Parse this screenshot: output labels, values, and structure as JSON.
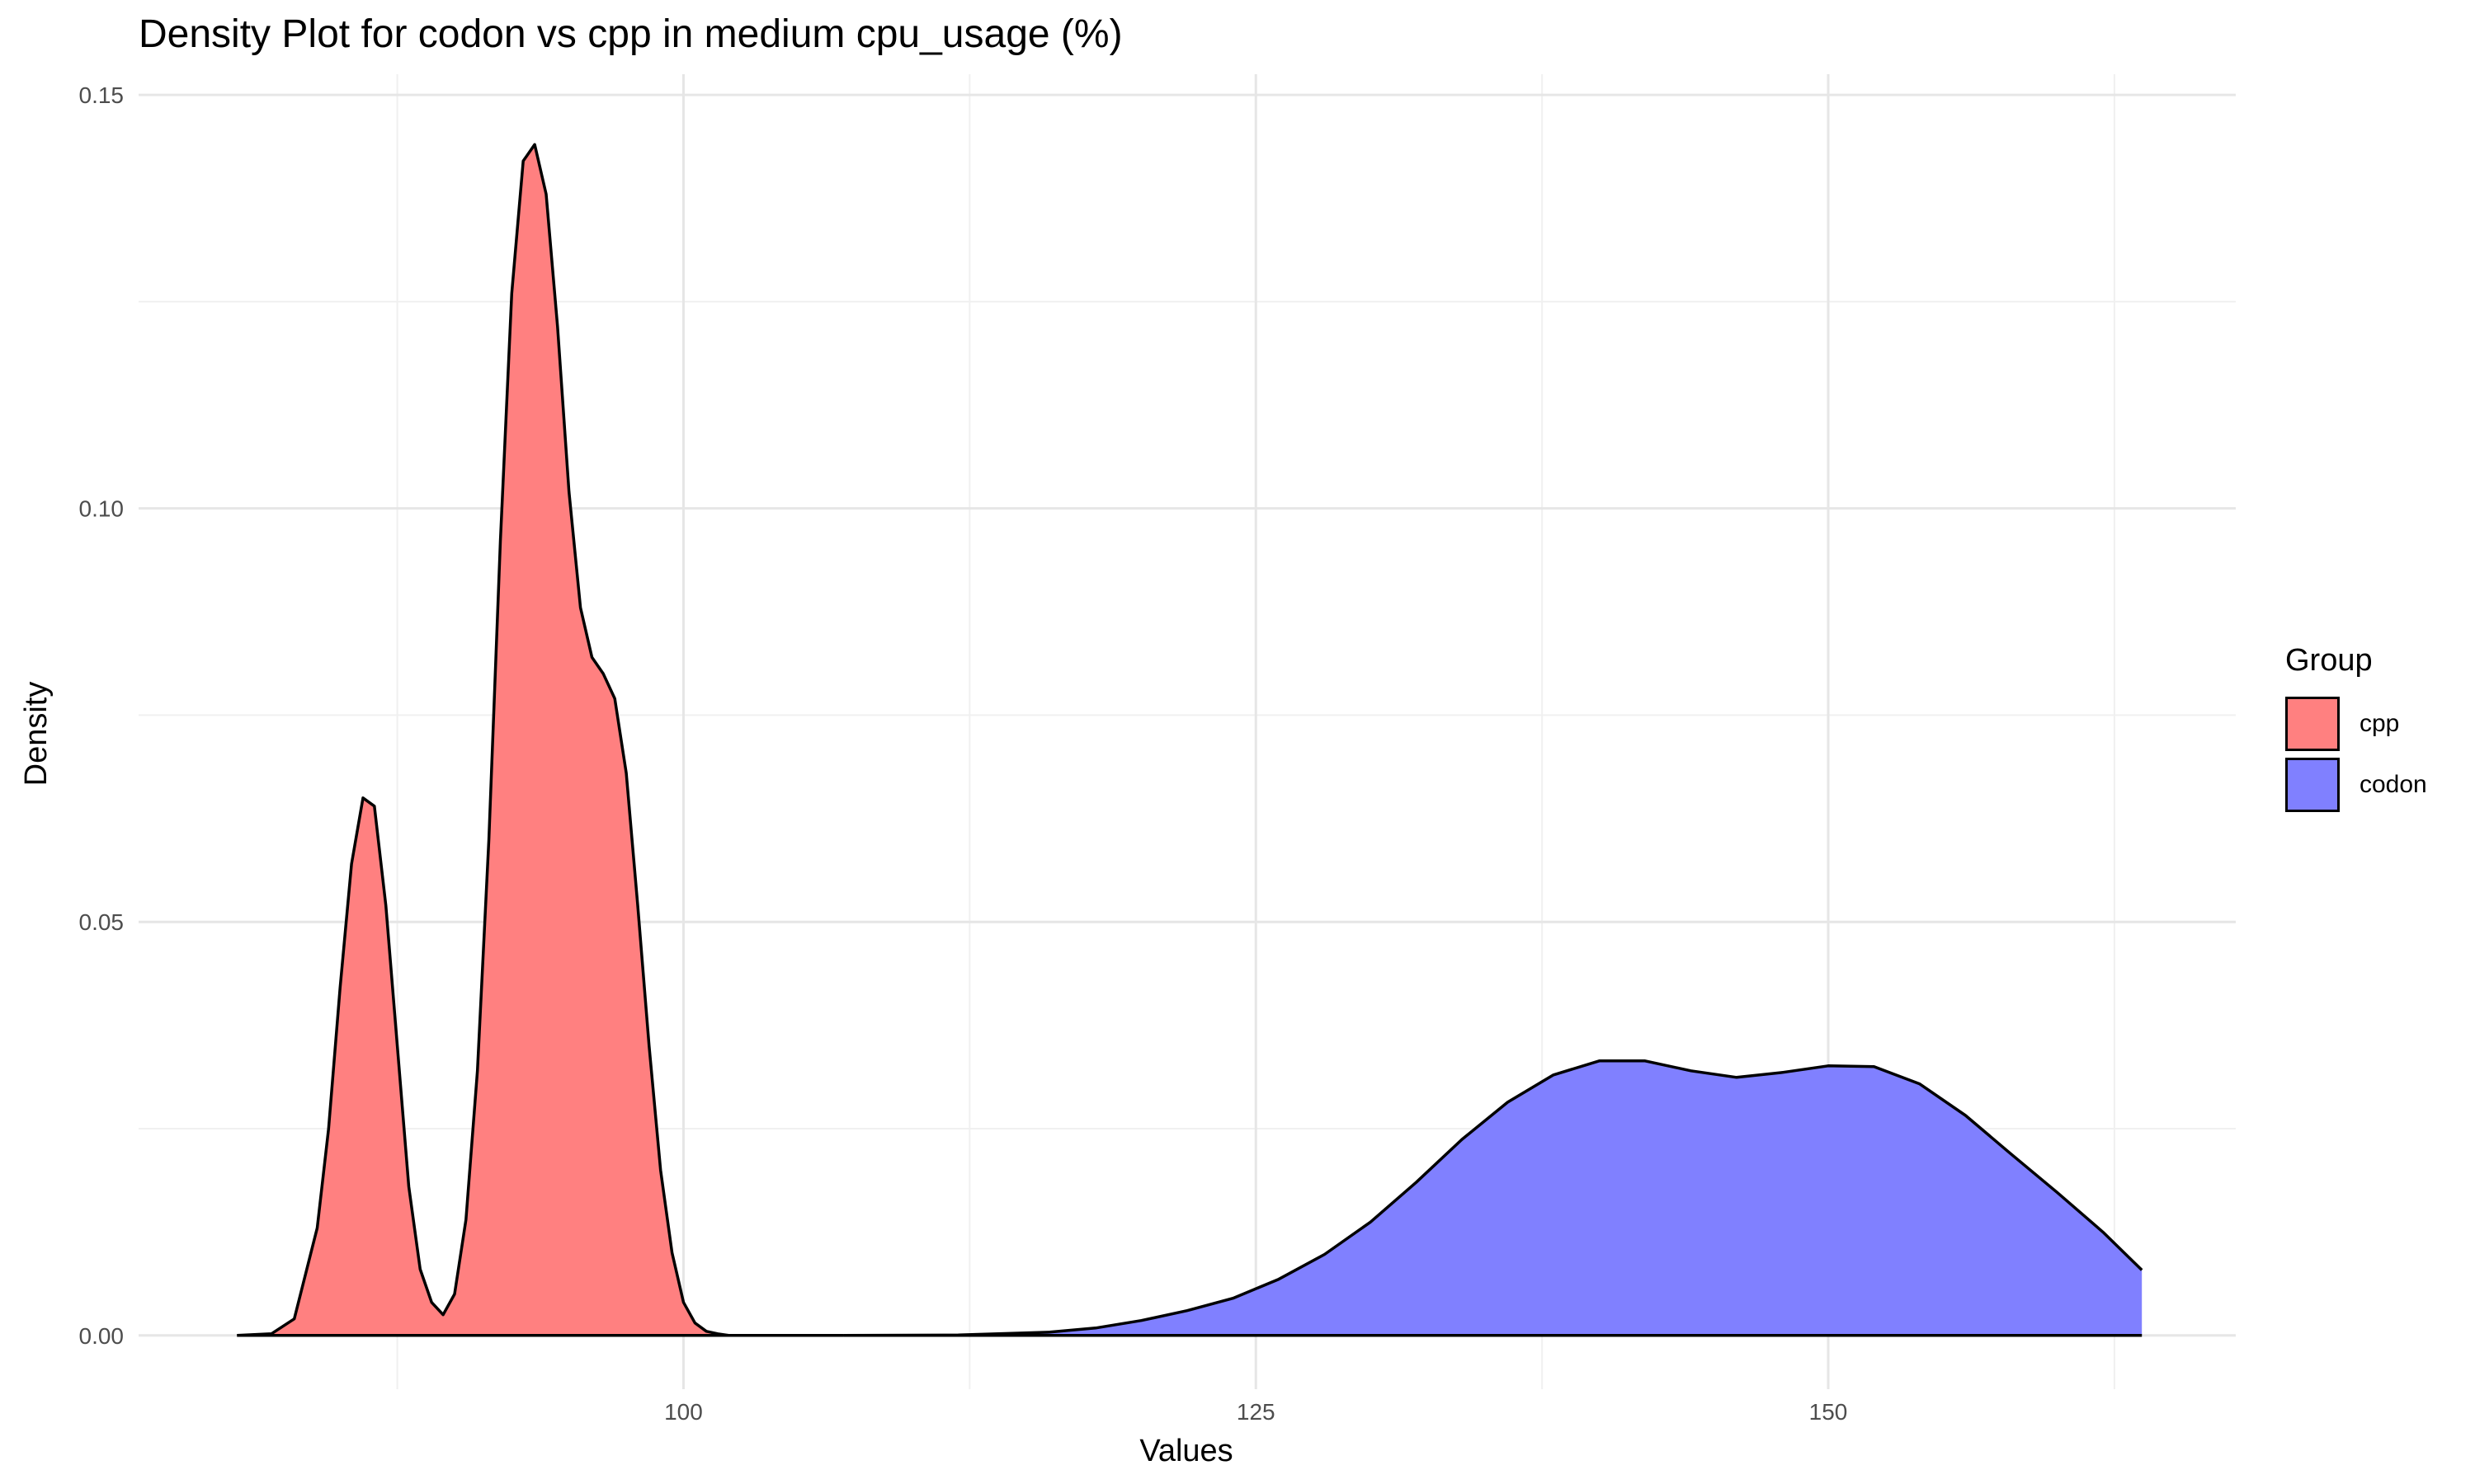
{
  "chart_data": {
    "type": "area",
    "title": "Density Plot for codon vs cpp in medium cpu_usage (%)",
    "xlabel": "Values",
    "ylabel": "Density",
    "xlim": [
      76.2,
      167.8
    ],
    "ylim": [
      -0.0065,
      0.1525
    ],
    "x_ticks": [
      100,
      125,
      150
    ],
    "y_ticks": [
      0.0,
      0.05,
      0.1,
      0.15
    ],
    "y_tick_labels": [
      "0.00",
      "0.05",
      "0.10",
      "0.15"
    ],
    "grid": true,
    "legend_title": "Group",
    "legend_position": "right",
    "series": [
      {
        "name": "cpp",
        "color": "#ff8080",
        "x": [
          80.5,
          82.0,
          83.0,
          84.0,
          84.5,
          85.0,
          85.5,
          86.0,
          86.5,
          87.0,
          87.5,
          88.0,
          88.5,
          89.0,
          89.5,
          90.0,
          90.5,
          91.0,
          91.5,
          92.0,
          92.5,
          93.0,
          93.5,
          94.0,
          94.5,
          95.0,
          95.5,
          96.0,
          96.5,
          97.0,
          97.5,
          98.0,
          98.5,
          99.0,
          99.5,
          100.0,
          100.5,
          101.0,
          101.5,
          102.0,
          103.0,
          104.0,
          105.0,
          107.0
        ],
        "y": [
          0.0,
          0.0002,
          0.002,
          0.013,
          0.025,
          0.042,
          0.057,
          0.065,
          0.064,
          0.052,
          0.035,
          0.018,
          0.008,
          0.004,
          0.0025,
          0.005,
          0.014,
          0.032,
          0.06,
          0.096,
          0.126,
          0.142,
          0.144,
          0.138,
          0.122,
          0.102,
          0.088,
          0.082,
          0.08,
          0.077,
          0.068,
          0.052,
          0.035,
          0.02,
          0.01,
          0.004,
          0.0015,
          0.0005,
          0.0002,
          0.0,
          0.0,
          0.0,
          0.0,
          0.0
        ]
      },
      {
        "name": "codon",
        "color": "#8080ff",
        "x": [
          107.0,
          112.0,
          116.0,
          118.0,
          120.0,
          122.0,
          124.0,
          126.0,
          128.0,
          130.0,
          132.0,
          134.0,
          136.0,
          138.0,
          140.0,
          142.0,
          144.0,
          146.0,
          148.0,
          150.0,
          152.0,
          154.0,
          156.0,
          158.0,
          160.0,
          162.0,
          163.7
        ],
        "y": [
          0.0,
          5e-05,
          0.0004,
          0.0009,
          0.0018,
          0.003,
          0.0045,
          0.0068,
          0.0098,
          0.0137,
          0.0185,
          0.0237,
          0.0282,
          0.0315,
          0.0332,
          0.0332,
          0.032,
          0.0312,
          0.0318,
          0.0326,
          0.0325,
          0.0304,
          0.0266,
          0.0219,
          0.0173,
          0.0125,
          0.0079
        ]
      }
    ]
  }
}
